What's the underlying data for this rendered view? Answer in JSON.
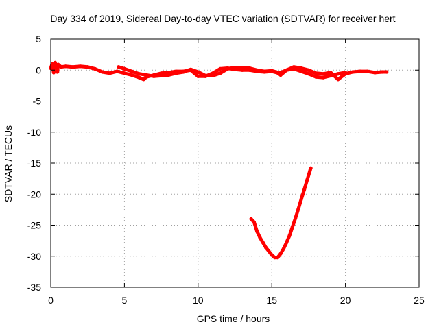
{
  "chart_data": {
    "type": "scatter",
    "title": "Day 334 of 2019, Sidereal Day-to-day VTEC variation (SDTVAR) for receiver hert",
    "xlabel": "GPS time / hours",
    "ylabel": "SDTVAR / TECUs",
    "xlim": [
      0,
      25
    ],
    "ylim": [
      -35,
      5
    ],
    "xticks": [
      0,
      5,
      10,
      15,
      20,
      25
    ],
    "yticks": [
      5,
      0,
      -5,
      -10,
      -15,
      -20,
      -25,
      -30,
      -35
    ],
    "grid": true,
    "series": [
      {
        "color": "#ff0000",
        "values_description": "",
        "points": [
          [
            0.0,
            0.3
          ],
          [
            0.1,
            1.0
          ],
          [
            0.2,
            -0.4
          ],
          [
            0.3,
            1.2
          ],
          [
            0.35,
            0.2
          ],
          [
            0.45,
            -0.3
          ],
          [
            0.5,
            0.9
          ],
          [
            0.7,
            0.5
          ],
          [
            1.0,
            0.6
          ],
          [
            1.5,
            0.5
          ],
          [
            2.0,
            0.6
          ],
          [
            2.5,
            0.5
          ],
          [
            3.0,
            0.2
          ],
          [
            3.5,
            -0.3
          ],
          [
            4.0,
            -0.5
          ],
          [
            4.5,
            -0.2
          ],
          [
            5.0,
            -0.5
          ],
          [
            5.5,
            -0.8
          ],
          [
            6.0,
            -1.2
          ],
          [
            6.3,
            -1.5
          ],
          [
            6.5,
            -1.1
          ],
          [
            7.0,
            -0.8
          ],
          [
            7.5,
            -0.5
          ],
          [
            8.0,
            -0.4
          ],
          [
            8.5,
            -0.2
          ],
          [
            9.0,
            -0.2
          ],
          [
            9.5,
            0.0
          ],
          [
            10.0,
            -1.0
          ],
          [
            10.5,
            -1.0
          ],
          [
            11.0,
            -0.5
          ],
          [
            11.5,
            0.2
          ],
          [
            12.0,
            0.3
          ],
          [
            12.5,
            0.1
          ],
          [
            13.0,
            0.0
          ],
          [
            13.5,
            0.0
          ],
          [
            14.0,
            -0.2
          ],
          [
            14.5,
            -0.3
          ],
          [
            15.0,
            -0.2
          ],
          [
            15.5,
            -0.5
          ],
          [
            16.0,
            0.0
          ],
          [
            16.5,
            0.5
          ],
          [
            17.0,
            0.3
          ],
          [
            17.5,
            0.0
          ],
          [
            18.0,
            -0.5
          ],
          [
            18.5,
            -0.6
          ],
          [
            19.0,
            -0.4
          ],
          [
            19.5,
            -1.5
          ],
          [
            20.0,
            -0.6
          ],
          [
            20.5,
            -0.3
          ],
          [
            21.0,
            -0.2
          ],
          [
            21.5,
            -0.2
          ],
          [
            22.0,
            -0.4
          ],
          [
            22.5,
            -0.3
          ],
          [
            22.8,
            -0.3
          ]
        ]
      },
      {
        "color": "#ff0000",
        "points": [
          [
            4.6,
            0.5
          ],
          [
            5.0,
            0.2
          ],
          [
            5.5,
            -0.2
          ],
          [
            6.0,
            -0.6
          ],
          [
            6.5,
            -0.8
          ],
          [
            7.0,
            -1.0
          ],
          [
            7.5,
            -0.9
          ],
          [
            8.0,
            -0.8
          ],
          [
            8.5,
            -0.5
          ],
          [
            9.0,
            -0.3
          ],
          [
            9.5,
            0.1
          ],
          [
            10.0,
            -0.3
          ],
          [
            10.5,
            -0.9
          ],
          [
            11.0,
            -0.9
          ],
          [
            11.5,
            -0.5
          ],
          [
            12.0,
            0.2
          ],
          [
            12.5,
            0.4
          ],
          [
            13.0,
            0.4
          ],
          [
            13.5,
            0.3
          ],
          [
            14.0,
            0.0
          ],
          [
            14.5,
            -0.2
          ],
          [
            15.0,
            -0.1
          ],
          [
            15.3,
            -0.3
          ],
          [
            15.6,
            -0.8
          ],
          [
            16.0,
            0.0
          ],
          [
            16.5,
            0.2
          ],
          [
            17.0,
            -0.2
          ],
          [
            17.5,
            -0.6
          ],
          [
            18.0,
            -1.1
          ],
          [
            18.5,
            -1.2
          ],
          [
            19.0,
            -0.9
          ],
          [
            19.5,
            -0.6
          ],
          [
            20.0,
            -0.4
          ]
        ]
      },
      {
        "color": "#ff0000",
        "points": [
          [
            13.6,
            -24.0
          ],
          [
            13.8,
            -24.5
          ],
          [
            14.0,
            -26.0
          ],
          [
            14.2,
            -27.0
          ],
          [
            14.4,
            -27.8
          ],
          [
            14.6,
            -28.6
          ],
          [
            14.8,
            -29.2
          ],
          [
            15.0,
            -29.8
          ],
          [
            15.2,
            -30.2
          ],
          [
            15.4,
            -30.2
          ],
          [
            15.6,
            -29.6
          ],
          [
            15.8,
            -28.8
          ],
          [
            16.0,
            -27.8
          ],
          [
            16.2,
            -26.7
          ],
          [
            16.4,
            -25.3
          ],
          [
            16.6,
            -23.9
          ],
          [
            16.8,
            -22.4
          ],
          [
            17.0,
            -20.8
          ],
          [
            17.2,
            -19.3
          ],
          [
            17.4,
            -17.7
          ],
          [
            17.6,
            -16.2
          ],
          [
            17.65,
            -15.8
          ]
        ]
      }
    ]
  }
}
